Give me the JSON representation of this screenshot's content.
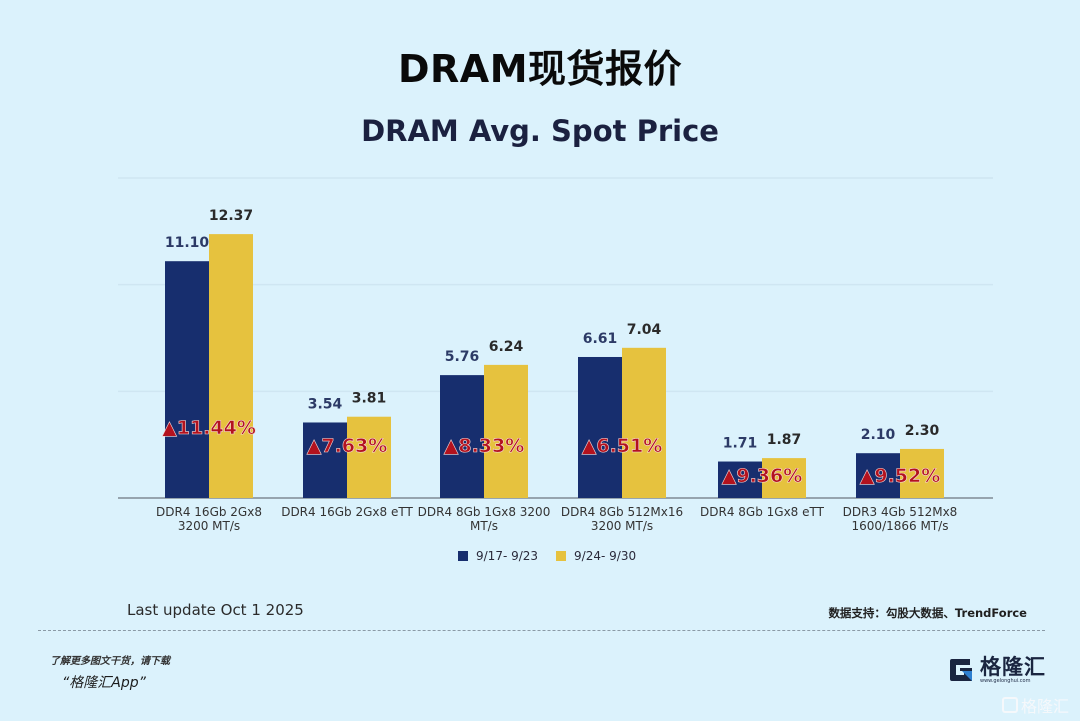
{
  "header": {
    "title": "DRAM现货报价"
  },
  "chart_data": {
    "type": "bar",
    "title": "DRAM Avg. Spot Price",
    "xlabel": "",
    "ylabel": "",
    "ylim": [
      0,
      15
    ],
    "grid": true,
    "gridlines": [
      5,
      10,
      15
    ],
    "legend_position": "bottom",
    "categories": [
      [
        "DDR4 16Gb 2Gx8",
        "3200 MT/s"
      ],
      [
        "DDR4 16Gb 2Gx8 eTT"
      ],
      [
        "DDR4 8Gb 1Gx8 3200",
        "MT/s"
      ],
      [
        "DDR4 8Gb 512Mx16",
        "3200 MT/s"
      ],
      [
        "DDR4 8Gb 1Gx8 eTT"
      ],
      [
        "DDR3 4Gb 512Mx8",
        "1600/1866  MT/s"
      ]
    ],
    "series": [
      {
        "name": "9/17- 9/23",
        "color": "#172e6e",
        "values": [
          11.1,
          3.54,
          5.76,
          6.61,
          1.71,
          2.1
        ],
        "labels": [
          "11.10",
          "3.54",
          "5.76",
          "6.61",
          "1.71",
          "2.10"
        ]
      },
      {
        "name": "9/24- 9/30",
        "color": "#e6c23e",
        "values": [
          12.37,
          3.81,
          6.24,
          7.04,
          1.87,
          2.3
        ],
        "labels": [
          "12.37",
          "3.81",
          "6.24",
          "7.04",
          "1.87",
          "2.30"
        ]
      }
    ],
    "changes": [
      "▲11.44%",
      "▲7.63%",
      "▲8.33%",
      "▲6.51%",
      "▲9.36%",
      "▲9.52%"
    ]
  },
  "footer": {
    "last_update": "Last update Oct 1  2025",
    "source": "数据支持：勾股大数据、TrendForce",
    "promo_line1": "了解更多图文干货，请下载",
    "promo_line2": "“格隆汇App”",
    "logo_name": "格隆汇",
    "logo_url": "www.gelonghui.com",
    "watermark": "格隆汇"
  }
}
